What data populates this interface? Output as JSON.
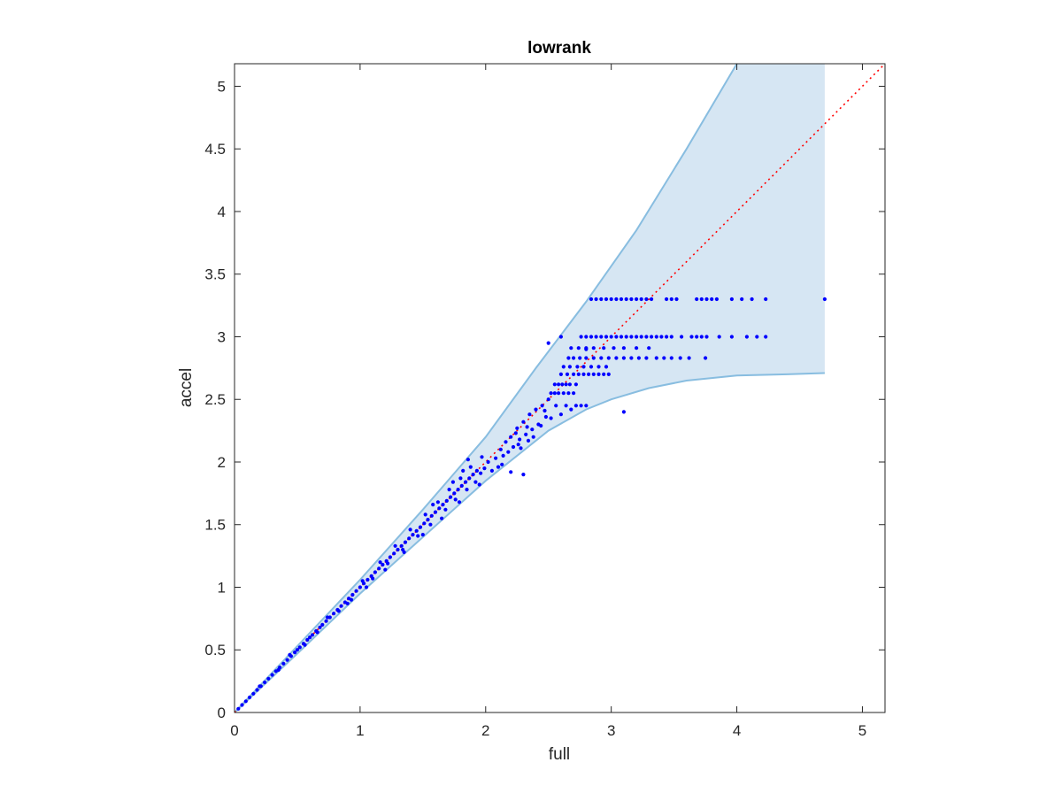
{
  "chart_data": {
    "type": "scatter",
    "title": "lowrank",
    "xlabel": "full",
    "ylabel": "accel",
    "xlim": [
      0,
      5.18
    ],
    "ylim": [
      0,
      5.18
    ],
    "xticks": [
      0,
      1,
      2,
      3,
      4,
      5
    ],
    "xtick_labels": [
      "0",
      "1",
      "2",
      "3",
      "4",
      "5"
    ],
    "yticks": [
      0,
      0.5,
      1,
      1.5,
      2,
      2.5,
      3,
      3.5,
      4,
      4.5,
      5
    ],
    "ytick_labels": [
      "0",
      "0.5",
      "1",
      "1.5",
      "2",
      "2.5",
      "3",
      "3.5",
      "4",
      "4.5",
      "5"
    ],
    "grid": false,
    "box": true,
    "colors": {
      "points": "#0000ff",
      "band_fill": "#d6e6f3",
      "band_edge": "#88bde0",
      "reference_line": "#ff0000",
      "axes": "#262626"
    },
    "reference_line": {
      "style": "dotted",
      "points": [
        [
          0,
          0
        ],
        [
          5.18,
          5.18
        ]
      ]
    },
    "band": {
      "upper": [
        [
          0,
          0
        ],
        [
          0.5,
          0.53
        ],
        [
          1,
          1.06
        ],
        [
          1.5,
          1.62
        ],
        [
          2,
          2.2
        ],
        [
          2.4,
          2.75
        ],
        [
          2.8,
          3.28
        ],
        [
          3.2,
          3.85
        ],
        [
          3.6,
          4.5
        ],
        [
          4.0,
          5.18
        ],
        [
          4.7,
          5.18
        ]
      ],
      "lower": [
        [
          0,
          0
        ],
        [
          0.5,
          0.47
        ],
        [
          1,
          0.95
        ],
        [
          1.5,
          1.4
        ],
        [
          2,
          1.85
        ],
        [
          2.5,
          2.25
        ],
        [
          2.8,
          2.42
        ],
        [
          3.0,
          2.5
        ],
        [
          3.3,
          2.59
        ],
        [
          3.6,
          2.65
        ],
        [
          4.0,
          2.69
        ],
        [
          4.4,
          2.7
        ],
        [
          4.7,
          2.71
        ]
      ]
    },
    "series": [
      {
        "points": [
          [
            0.03,
            0.03
          ],
          [
            0.06,
            0.06
          ],
          [
            0.09,
            0.09
          ],
          [
            0.12,
            0.12
          ],
          [
            0.15,
            0.15
          ],
          [
            0.18,
            0.18
          ],
          [
            0.21,
            0.21
          ],
          [
            0.24,
            0.24
          ],
          [
            0.27,
            0.27
          ],
          [
            0.3,
            0.3
          ],
          [
            0.33,
            0.33
          ],
          [
            0.36,
            0.36
          ],
          [
            0.39,
            0.39
          ],
          [
            0.42,
            0.42
          ],
          [
            0.45,
            0.45
          ],
          [
            0.48,
            0.48
          ],
          [
            0.5,
            0.5
          ],
          [
            0.52,
            0.52
          ],
          [
            0.55,
            0.55
          ],
          [
            0.58,
            0.58
          ],
          [
            0.6,
            0.6
          ],
          [
            0.62,
            0.62
          ],
          [
            0.65,
            0.65
          ],
          [
            0.68,
            0.68
          ],
          [
            0.7,
            0.7
          ],
          [
            0.73,
            0.73
          ],
          [
            0.76,
            0.76
          ],
          [
            0.79,
            0.79
          ],
          [
            0.82,
            0.82
          ],
          [
            0.85,
            0.85
          ],
          [
            0.88,
            0.88
          ],
          [
            0.91,
            0.91
          ],
          [
            0.94,
            0.94
          ],
          [
            0.97,
            0.97
          ],
          [
            1.0,
            1.0
          ],
          [
            1.03,
            1.03
          ],
          [
            1.06,
            1.06
          ],
          [
            1.09,
            1.09
          ],
          [
            1.12,
            1.12
          ],
          [
            1.15,
            1.15
          ],
          [
            1.18,
            1.18
          ],
          [
            1.21,
            1.21
          ],
          [
            1.24,
            1.24
          ],
          [
            1.27,
            1.27
          ],
          [
            1.3,
            1.3
          ],
          [
            1.33,
            1.33
          ],
          [
            1.36,
            1.36
          ],
          [
            1.39,
            1.39
          ],
          [
            1.42,
            1.42
          ],
          [
            1.45,
            1.45
          ],
          [
            1.48,
            1.48
          ],
          [
            1.51,
            1.51
          ],
          [
            1.54,
            1.54
          ],
          [
            1.57,
            1.57
          ],
          [
            1.6,
            1.6
          ],
          [
            1.63,
            1.63
          ],
          [
            1.66,
            1.66
          ],
          [
            1.69,
            1.69
          ],
          [
            1.72,
            1.72
          ],
          [
            1.75,
            1.75
          ],
          [
            1.78,
            1.78
          ],
          [
            1.81,
            1.81
          ],
          [
            1.84,
            1.84
          ],
          [
            1.87,
            1.87
          ],
          [
            1.9,
            1.9
          ],
          [
            1.93,
            1.93
          ],
          [
            0.2,
            0.21
          ],
          [
            0.35,
            0.34
          ],
          [
            0.44,
            0.46
          ],
          [
            0.56,
            0.54
          ],
          [
            0.66,
            0.64
          ],
          [
            0.74,
            0.76
          ],
          [
            0.83,
            0.81
          ],
          [
            0.93,
            0.9
          ],
          [
            1.02,
            1.05
          ],
          [
            1.1,
            1.07
          ],
          [
            1.16,
            1.2
          ],
          [
            1.22,
            1.19
          ],
          [
            1.28,
            1.33
          ],
          [
            1.34,
            1.3
          ],
          [
            1.4,
            1.46
          ],
          [
            1.46,
            1.41
          ],
          [
            1.52,
            1.58
          ],
          [
            1.56,
            1.5
          ],
          [
            1.62,
            1.68
          ],
          [
            1.68,
            1.62
          ],
          [
            1.71,
            1.78
          ],
          [
            1.76,
            1.7
          ],
          [
            1.8,
            1.87
          ],
          [
            1.85,
            1.78
          ],
          [
            1.88,
            1.96
          ],
          [
            1.92,
            1.84
          ],
          [
            0.9,
            0.87
          ],
          [
            1.05,
            1.0
          ],
          [
            1.2,
            1.14
          ],
          [
            1.35,
            1.28
          ],
          [
            1.5,
            1.42
          ],
          [
            1.65,
            1.55
          ],
          [
            1.79,
            1.68
          ],
          [
            1.95,
            1.82
          ],
          [
            1.58,
            1.66
          ],
          [
            1.74,
            1.84
          ],
          [
            1.82,
            1.93
          ],
          [
            1.97,
            2.04
          ],
          [
            1.86,
            2.02
          ],
          [
            1.99,
            1.95
          ],
          [
            1.96,
            1.91
          ],
          [
            2.02,
            2.0
          ],
          [
            2.05,
            1.93
          ],
          [
            2.08,
            2.03
          ],
          [
            2.1,
            1.96
          ],
          [
            2.12,
            2.1
          ],
          [
            2.14,
            2.05
          ],
          [
            2.16,
            2.16
          ],
          [
            2.18,
            2.08
          ],
          [
            2.2,
            2.2
          ],
          [
            2.22,
            2.12
          ],
          [
            2.25,
            2.27
          ],
          [
            2.27,
            2.18
          ],
          [
            2.3,
            2.32
          ],
          [
            2.32,
            2.22
          ],
          [
            2.35,
            2.38
          ],
          [
            2.37,
            2.26
          ],
          [
            2.4,
            2.42
          ],
          [
            2.42,
            2.3
          ],
          [
            2.45,
            2.45
          ],
          [
            2.48,
            2.36
          ],
          [
            2.5,
            2.5
          ],
          [
            2.13,
            1.98
          ],
          [
            2.24,
            2.23
          ],
          [
            2.26,
            2.14
          ],
          [
            2.33,
            2.28
          ],
          [
            2.2,
            1.92
          ],
          [
            2.28,
            2.11
          ],
          [
            2.34,
            2.17
          ],
          [
            2.38,
            2.2
          ],
          [
            2.44,
            2.29
          ],
          [
            2.47,
            2.41
          ],
          [
            2.52,
            2.35
          ],
          [
            2.56,
            2.45
          ],
          [
            2.6,
            2.38
          ],
          [
            2.64,
            2.45
          ],
          [
            2.68,
            2.42
          ],
          [
            2.72,
            2.45
          ],
          [
            2.76,
            2.45
          ],
          [
            2.8,
            2.45
          ],
          [
            2.52,
            2.55
          ],
          [
            2.55,
            2.55
          ],
          [
            2.58,
            2.55
          ],
          [
            2.62,
            2.55
          ],
          [
            2.66,
            2.55
          ],
          [
            2.7,
            2.55
          ],
          [
            2.55,
            2.62
          ],
          [
            2.58,
            2.62
          ],
          [
            2.61,
            2.62
          ],
          [
            2.64,
            2.62
          ],
          [
            2.67,
            2.62
          ],
          [
            2.72,
            2.62
          ],
          [
            2.6,
            2.7
          ],
          [
            2.65,
            2.7
          ],
          [
            2.7,
            2.7
          ],
          [
            2.74,
            2.7
          ],
          [
            2.78,
            2.7
          ],
          [
            2.82,
            2.7
          ],
          [
            2.86,
            2.7
          ],
          [
            2.9,
            2.7
          ],
          [
            2.94,
            2.7
          ],
          [
            2.98,
            2.7
          ],
          [
            2.62,
            2.76
          ],
          [
            2.67,
            2.76
          ],
          [
            2.73,
            2.76
          ],
          [
            2.78,
            2.76
          ],
          [
            2.84,
            2.76
          ],
          [
            2.9,
            2.76
          ],
          [
            2.96,
            2.76
          ],
          [
            2.66,
            2.83
          ],
          [
            2.7,
            2.83
          ],
          [
            2.75,
            2.83
          ],
          [
            2.8,
            2.83
          ],
          [
            2.86,
            2.83
          ],
          [
            2.92,
            2.83
          ],
          [
            2.98,
            2.83
          ],
          [
            3.04,
            2.83
          ],
          [
            3.1,
            2.83
          ],
          [
            3.16,
            2.83
          ],
          [
            3.22,
            2.83
          ],
          [
            3.28,
            2.83
          ],
          [
            3.36,
            2.83
          ],
          [
            3.42,
            2.83
          ],
          [
            3.48,
            2.83
          ],
          [
            3.55,
            2.83
          ],
          [
            3.62,
            2.83
          ],
          [
            3.75,
            2.83
          ],
          [
            2.68,
            2.91
          ],
          [
            2.74,
            2.91
          ],
          [
            2.8,
            2.91
          ],
          [
            2.86,
            2.91
          ],
          [
            2.94,
            2.91
          ],
          [
            3.02,
            2.91
          ],
          [
            3.1,
            2.91
          ],
          [
            3.2,
            2.91
          ],
          [
            3.3,
            2.91
          ],
          [
            2.6,
            3.0
          ],
          [
            2.76,
            3.0
          ],
          [
            2.8,
            3.0
          ],
          [
            2.84,
            3.0
          ],
          [
            2.88,
            3.0
          ],
          [
            2.92,
            3.0
          ],
          [
            2.96,
            3.0
          ],
          [
            3.0,
            3.0
          ],
          [
            3.04,
            3.0
          ],
          [
            3.08,
            3.0
          ],
          [
            3.12,
            3.0
          ],
          [
            3.16,
            3.0
          ],
          [
            3.2,
            3.0
          ],
          [
            3.24,
            3.0
          ],
          [
            3.28,
            3.0
          ],
          [
            3.32,
            3.0
          ],
          [
            3.36,
            3.0
          ],
          [
            3.4,
            3.0
          ],
          [
            3.44,
            3.0
          ],
          [
            3.48,
            3.0
          ],
          [
            3.56,
            3.0
          ],
          [
            3.64,
            3.0
          ],
          [
            3.68,
            3.0
          ],
          [
            3.72,
            3.0
          ],
          [
            3.76,
            3.0
          ],
          [
            3.86,
            3.0
          ],
          [
            3.96,
            3.0
          ],
          [
            4.08,
            3.0
          ],
          [
            4.16,
            3.0
          ],
          [
            4.23,
            3.0
          ],
          [
            2.84,
            3.3
          ],
          [
            2.88,
            3.3
          ],
          [
            2.92,
            3.3
          ],
          [
            2.96,
            3.3
          ],
          [
            3.0,
            3.3
          ],
          [
            3.04,
            3.3
          ],
          [
            3.08,
            3.3
          ],
          [
            3.12,
            3.3
          ],
          [
            3.16,
            3.3
          ],
          [
            3.2,
            3.3
          ],
          [
            3.24,
            3.3
          ],
          [
            3.28,
            3.3
          ],
          [
            3.32,
            3.3
          ],
          [
            3.44,
            3.3
          ],
          [
            3.48,
            3.3
          ],
          [
            3.52,
            3.3
          ],
          [
            3.68,
            3.3
          ],
          [
            3.72,
            3.3
          ],
          [
            3.76,
            3.3
          ],
          [
            3.8,
            3.3
          ],
          [
            3.84,
            3.3
          ],
          [
            3.96,
            3.3
          ],
          [
            4.04,
            3.3
          ],
          [
            4.12,
            3.3
          ],
          [
            4.23,
            3.3
          ],
          [
            4.7,
            3.3
          ],
          [
            3.1,
            2.4
          ],
          [
            2.3,
            1.9
          ],
          [
            2.8,
            2.9
          ],
          [
            2.5,
            2.95
          ]
        ]
      }
    ]
  }
}
